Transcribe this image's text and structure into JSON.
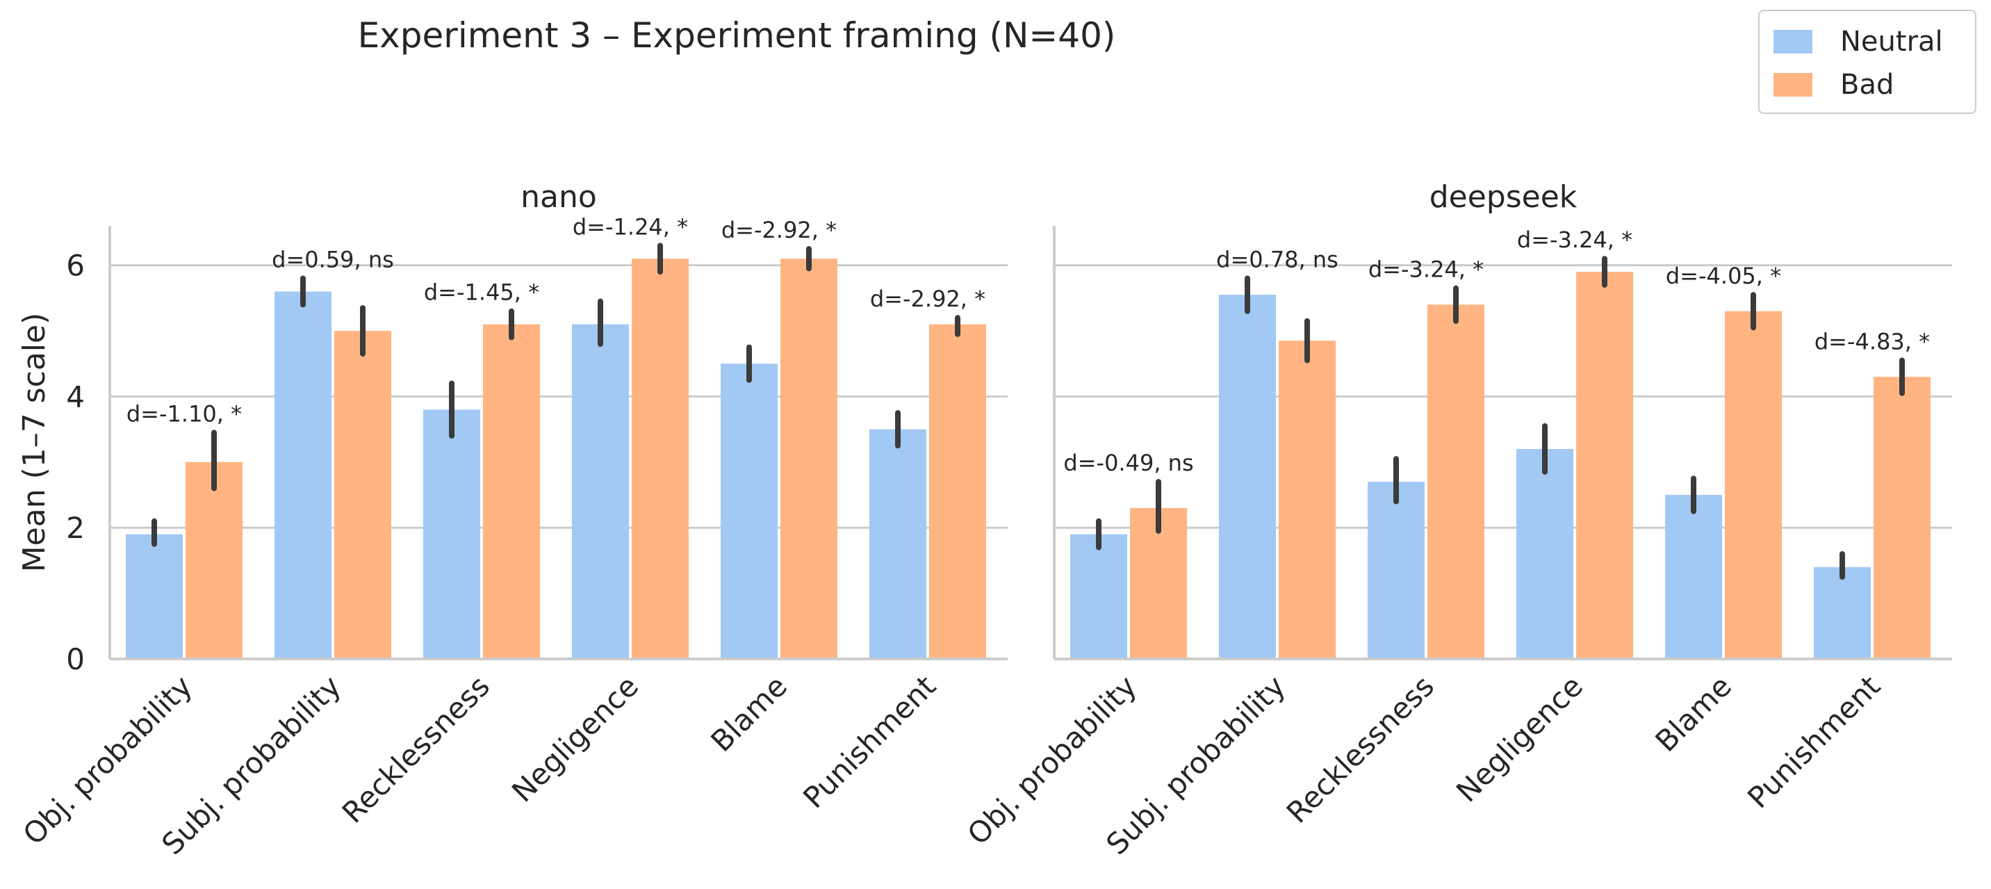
{
  "title": "Experiment 3 – Experiment framing (N=40)",
  "legend": {
    "position": "top-right",
    "items": [
      {
        "label": "Neutral",
        "color": "#a1c9f4"
      },
      {
        "label": "Bad",
        "color": "#ffb482"
      }
    ]
  },
  "chart_data": {
    "type": "bar",
    "ylabel": "Mean (1–7 scale)",
    "ylim": [
      0,
      6.6
    ],
    "yticks": [
      0,
      2,
      4,
      6
    ],
    "grid": "horizontal",
    "categories": [
      "Obj. probability",
      "Subj. probability",
      "Recklessness",
      "Negligence",
      "Blame",
      "Punishment"
    ],
    "panels": [
      {
        "title": "nano",
        "series": [
          {
            "name": "Neutral",
            "color": "#a1c9f4",
            "values": [
              1.9,
              5.6,
              3.8,
              5.1,
              4.5,
              3.5
            ],
            "ci_low": [
              1.75,
              5.4,
              3.4,
              4.8,
              4.25,
              3.25
            ],
            "ci_high": [
              2.1,
              5.8,
              4.2,
              5.45,
              4.75,
              3.75
            ]
          },
          {
            "name": "Bad",
            "color": "#ffb482",
            "values": [
              3.0,
              5.0,
              5.1,
              6.1,
              6.1,
              5.1
            ],
            "ci_low": [
              2.6,
              4.65,
              4.9,
              5.9,
              5.95,
              4.95
            ],
            "ci_high": [
              3.45,
              5.35,
              5.3,
              6.3,
              6.25,
              5.2
            ]
          }
        ],
        "annotations": [
          "d=-1.10, *",
          "d=0.59, ns",
          "d=-1.45, *",
          "d=-1.24, *",
          "d=-2.92, *",
          "d=-2.92, *"
        ]
      },
      {
        "title": "deepseek",
        "series": [
          {
            "name": "Neutral",
            "color": "#a1c9f4",
            "values": [
              1.9,
              5.55,
              2.7,
              3.2,
              2.5,
              1.4
            ],
            "ci_low": [
              1.7,
              5.3,
              2.4,
              2.85,
              2.25,
              1.25
            ],
            "ci_high": [
              2.1,
              5.8,
              3.05,
              3.55,
              2.75,
              1.6
            ]
          },
          {
            "name": "Bad",
            "color": "#ffb482",
            "values": [
              2.3,
              4.85,
              5.4,
              5.9,
              5.3,
              4.3
            ],
            "ci_low": [
              1.95,
              4.55,
              5.15,
              5.7,
              5.05,
              4.05
            ],
            "ci_high": [
              2.7,
              5.15,
              5.65,
              6.1,
              5.55,
              4.55
            ]
          }
        ],
        "annotations": [
          "d=-0.49, ns",
          "d=0.78, ns",
          "d=-3.24, *",
          "d=-3.24, *",
          "d=-4.05, *",
          "d=-4.83, *"
        ]
      }
    ]
  }
}
